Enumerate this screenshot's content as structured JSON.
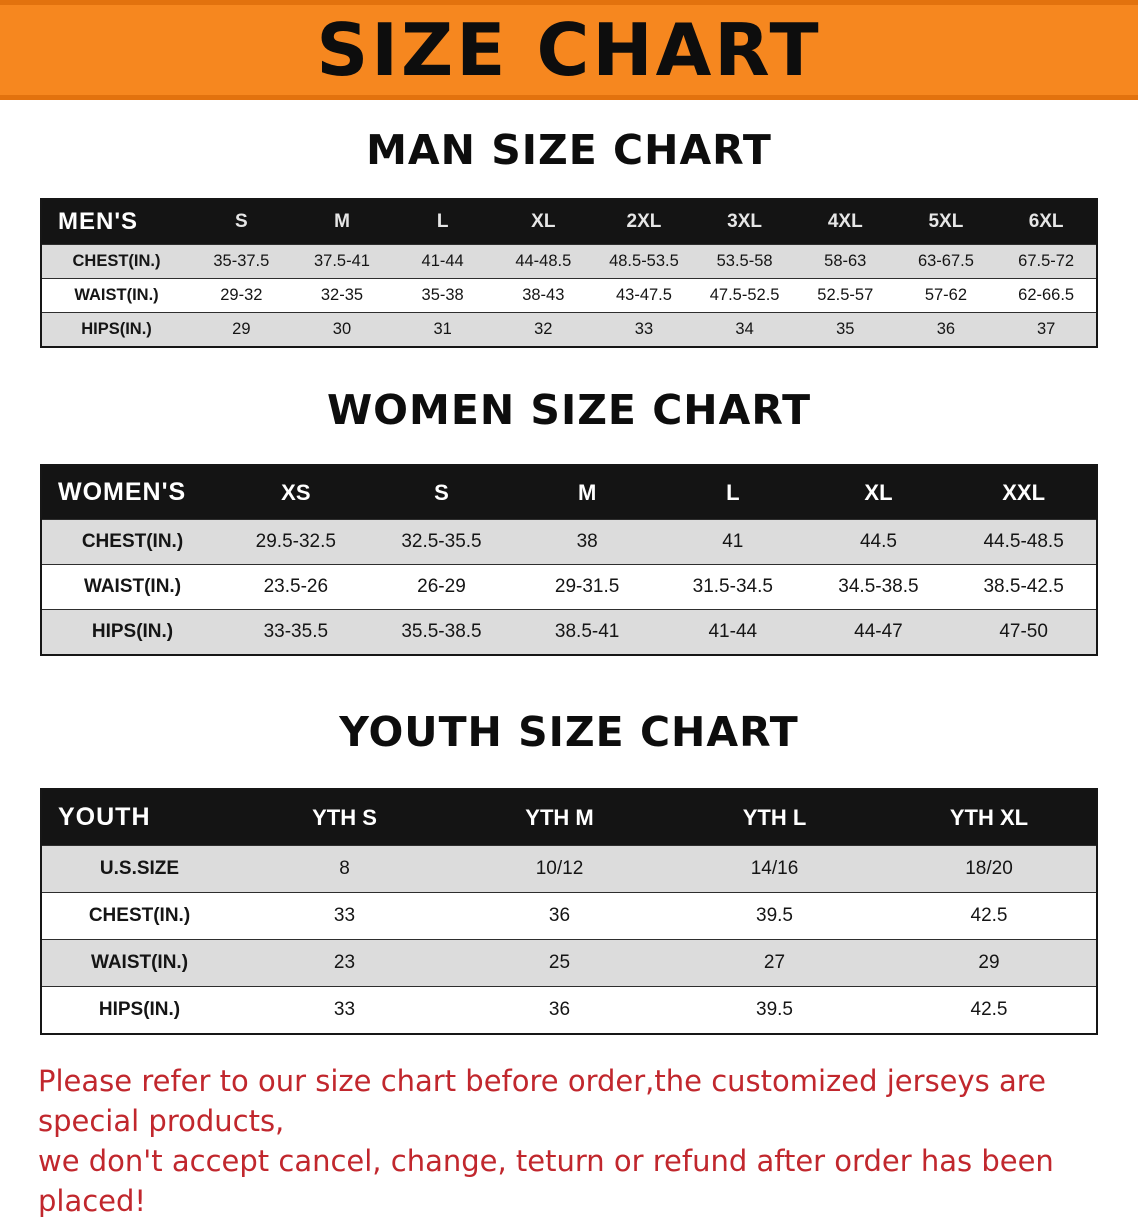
{
  "banner": {
    "title": "SIZE CHART",
    "bg_color": "#f6871f"
  },
  "men": {
    "heading": "MAN SIZE CHART",
    "table": {
      "header": [
        "MEN'S",
        "S",
        "M",
        "L",
        "XL",
        "2XL",
        "3XL",
        "4XL",
        "5XL",
        "6XL"
      ],
      "rows": [
        [
          "CHEST(IN.)",
          "35-37.5",
          "37.5-41",
          "41-44",
          "44-48.5",
          "48.5-53.5",
          "53.5-58",
          "58-63",
          "63-67.5",
          "67.5-72"
        ],
        [
          "WAIST(IN.)",
          "29-32",
          "32-35",
          "35-38",
          "38-43",
          "43-47.5",
          "47.5-52.5",
          "52.5-57",
          "57-62",
          "62-66.5"
        ],
        [
          "HIPS(IN.)",
          "29",
          "30",
          "31",
          "32",
          "33",
          "34",
          "35",
          "36",
          "37"
        ]
      ]
    }
  },
  "women": {
    "heading": "WOMEN SIZE CHART",
    "table": {
      "header": [
        "WOMEN'S",
        "XS",
        "S",
        "M",
        "L",
        "XL",
        "XXL"
      ],
      "rows": [
        [
          "CHEST(IN.)",
          "29.5-32.5",
          "32.5-35.5",
          "38",
          "41",
          "44.5",
          "44.5-48.5"
        ],
        [
          "WAIST(IN.)",
          "23.5-26",
          "26-29",
          "29-31.5",
          "31.5-34.5",
          "34.5-38.5",
          "38.5-42.5"
        ],
        [
          "HIPS(IN.)",
          "33-35.5",
          "35.5-38.5",
          "38.5-41",
          "41-44",
          "44-47",
          "47-50"
        ]
      ]
    }
  },
  "youth": {
    "heading": "YOUTH SIZE CHART",
    "table": {
      "header": [
        "YOUTH",
        "YTH S",
        "YTH M",
        "YTH L",
        "YTH XL"
      ],
      "rows": [
        [
          "U.S.SIZE",
          "8",
          "10/12",
          "14/16",
          "18/20"
        ],
        [
          "CHEST(IN.)",
          "33",
          "36",
          "39.5",
          "42.5"
        ],
        [
          "WAIST(IN.)",
          "23",
          "25",
          "27",
          "29"
        ],
        [
          "HIPS(IN.)",
          "33",
          "36",
          "39.5",
          "42.5"
        ]
      ]
    }
  },
  "footer": {
    "line1": "Please refer to our size chart before order,the customized jerseys are special products,",
    "line2": "we don't accept cancel, change, teturn or refund after order has been placed!",
    "text_color": "#c1272d"
  }
}
